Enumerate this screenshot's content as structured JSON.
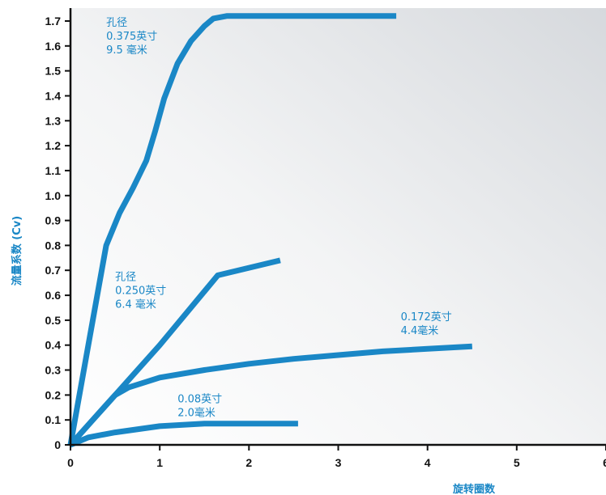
{
  "chart_data": {
    "type": "line",
    "title": "",
    "xlabel": "旋转圈数",
    "ylabel": "流量系数 (Cv)",
    "xlim": [
      0,
      6
    ],
    "ylim": [
      0,
      1.75
    ],
    "x_ticks": [
      "0",
      "1",
      "2",
      "3",
      "4",
      "5",
      "6"
    ],
    "y_ticks": [
      "0",
      "0.1",
      "0.2",
      "0.3",
      "0.4",
      "0.5",
      "0.6",
      "0.7",
      "0.8",
      "0.9",
      "1.0",
      "1.1",
      "1.2",
      "1.3",
      "1.4",
      "1.5",
      "1.6",
      "1.7"
    ],
    "grid": false,
    "colors": {
      "series": "#1a87c6",
      "axis": "#111111",
      "background_gradient_light": "#ffffff",
      "background_gradient_dark": "#d6d9dd"
    },
    "series": [
      {
        "x": [
          0,
          0.2,
          0.4,
          0.55,
          0.7,
          0.85,
          0.95,
          1.05,
          1.2,
          1.35,
          1.5,
          1.6,
          1.75,
          3.65
        ],
        "y": [
          0,
          0.4,
          0.8,
          0.93,
          1.03,
          1.14,
          1.26,
          1.39,
          1.53,
          1.62,
          1.68,
          1.71,
          1.72,
          1.72
        ]
      },
      {
        "x": [
          0,
          0.25,
          0.5,
          1.0,
          1.65,
          2.35
        ],
        "y": [
          0,
          0.1,
          0.2,
          0.4,
          0.68,
          0.74
        ]
      },
      {
        "x": [
          0,
          0.25,
          0.5,
          0.65,
          1.0,
          1.5,
          2.0,
          2.5,
          3.0,
          3.5,
          4.0,
          4.5
        ],
        "y": [
          0,
          0.1,
          0.2,
          0.23,
          0.27,
          0.3,
          0.325,
          0.345,
          0.36,
          0.375,
          0.385,
          0.395
        ]
      },
      {
        "x": [
          0,
          0.2,
          0.5,
          1.0,
          1.5,
          2.0,
          2.55
        ],
        "y": [
          0,
          0.03,
          0.05,
          0.075,
          0.085,
          0.085,
          0.085
        ]
      }
    ],
    "annotations": [
      {
        "lines": [
          "孔径",
          "0.375英寸",
          "9.5 毫米"
        ],
        "x": 0.4,
        "y": 1.68
      },
      {
        "lines": [
          "孔径",
          "0.250英寸",
          "6.4 毫米"
        ],
        "x": 0.5,
        "y": 0.66
      },
      {
        "lines": [
          "0.172英寸",
          "4.4毫米"
        ],
        "x": 3.7,
        "y": 0.5
      },
      {
        "lines": [
          "0.08英寸",
          "2.0毫米"
        ],
        "x": 1.2,
        "y": 0.17
      }
    ]
  }
}
